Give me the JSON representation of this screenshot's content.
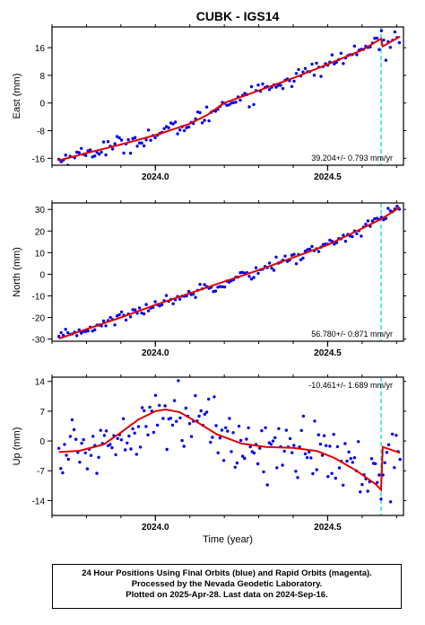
{
  "title": "CUBK - IGS14",
  "xlabel": "Time (year)",
  "footer": {
    "line1": "24 Hour Positions Using Final Orbits (blue) and Rapid Orbits (magenta).",
    "line2": "Processed by the Nevada Geodetic Laboratory.",
    "line3": "Plotted on 2025-Apr-28. Last data on 2024-Sep-16."
  },
  "colors": {
    "points": "#0000ee",
    "fit": "#e00000",
    "event_line": "#00d8e8",
    "axis": "#000000"
  },
  "chart_data": [
    {
      "type": "scatter",
      "name": "east",
      "ylabel": "East (mm)",
      "rate_label": "39.204+/- 0.793 mm/yr",
      "xlim": [
        2023.7,
        2024.72
      ],
      "ylim": [
        -18,
        22
      ],
      "xticks": [
        2024.0,
        2024.5
      ],
      "xtick_labels": [
        "2024.0",
        "2024.5"
      ],
      "yticks": [
        -16,
        -8,
        0,
        8,
        16
      ],
      "event_x": 2024.655,
      "trend": {
        "start": 2023.72,
        "end": 2024.71,
        "y0": -16.4,
        "y1": 20.5,
        "noise": 1.3,
        "step": 0.0065,
        "jump": 1.0
      },
      "fit_line": [
        [
          2023.72,
          -16.6
        ],
        [
          2023.8,
          -14.5
        ],
        [
          2023.9,
          -12.0
        ],
        [
          2024.0,
          -9.3
        ],
        [
          2024.1,
          -6.0
        ],
        [
          2024.15,
          -3.5
        ],
        [
          2024.2,
          0.0
        ],
        [
          2024.3,
          3.6
        ],
        [
          2024.4,
          7.2
        ],
        [
          2024.5,
          11.2
        ],
        [
          2024.6,
          15.3
        ],
        [
          2024.655,
          18.6
        ],
        [
          2024.66,
          16.4
        ],
        [
          2024.71,
          19.2
        ]
      ]
    },
    {
      "type": "scatter",
      "name": "north",
      "ylabel": "North (mm)",
      "rate_label": "56.780+/- 0.871 mm/yr",
      "xlim": [
        2023.7,
        2024.72
      ],
      "ylim": [
        -31,
        33
      ],
      "xticks": [
        2024.0,
        2024.5
      ],
      "xtick_labels": [
        "2024.0",
        "2024.5"
      ],
      "yticks": [
        -30,
        -20,
        -10,
        0,
        10,
        20,
        30
      ],
      "event_x": 2024.655,
      "trend": {
        "start": 2023.72,
        "end": 2024.71,
        "y0": -29.6,
        "y1": 31.0,
        "noise": 1.4,
        "step": 0.0065,
        "jump": 0
      },
      "fit_line": [
        [
          2023.72,
          -29.8
        ],
        [
          2023.9,
          -20.0
        ],
        [
          2024.0,
          -14.2
        ],
        [
          2024.2,
          -3.4
        ],
        [
          2024.3,
          1.9
        ],
        [
          2024.5,
          13.6
        ],
        [
          2024.6,
          21.2
        ],
        [
          2024.655,
          25.5
        ],
        [
          2024.71,
          31.0
        ]
      ]
    },
    {
      "type": "scatter",
      "name": "up",
      "ylabel": "Up (mm)",
      "rate_label": "-10.461+/- 1.689 mm/yr",
      "xlim": [
        2023.7,
        2024.72
      ],
      "ylim": [
        -17.5,
        15
      ],
      "xticks": [
        2024.0,
        2024.5
      ],
      "xtick_labels": [
        "2024.0",
        "2024.5"
      ],
      "yticks": [
        -14,
        -7,
        0,
        7,
        14
      ],
      "event_x": 2024.655,
      "trend": {
        "start": 2023.72,
        "end": 2024.71,
        "y0": 0,
        "y1": 0,
        "noise": 3.8,
        "step": 0.0055,
        "jump": 0
      },
      "fit_line": [
        [
          2023.72,
          -2.6
        ],
        [
          2023.78,
          -2.3
        ],
        [
          2023.85,
          -0.8
        ],
        [
          2023.9,
          2.0
        ],
        [
          2023.95,
          5.0
        ],
        [
          2024.0,
          7.0
        ],
        [
          2024.03,
          7.4
        ],
        [
          2024.07,
          6.8
        ],
        [
          2024.12,
          4.5
        ],
        [
          2024.18,
          1.5
        ],
        [
          2024.25,
          -0.6
        ],
        [
          2024.32,
          -1.4
        ],
        [
          2024.4,
          -1.6
        ],
        [
          2024.47,
          -2.4
        ],
        [
          2024.52,
          -4.0
        ],
        [
          2024.58,
          -6.8
        ],
        [
          2024.64,
          -10.2
        ],
        [
          2024.655,
          -11.5
        ],
        [
          2024.66,
          -1.4
        ],
        [
          2024.71,
          -2.8
        ]
      ]
    }
  ]
}
